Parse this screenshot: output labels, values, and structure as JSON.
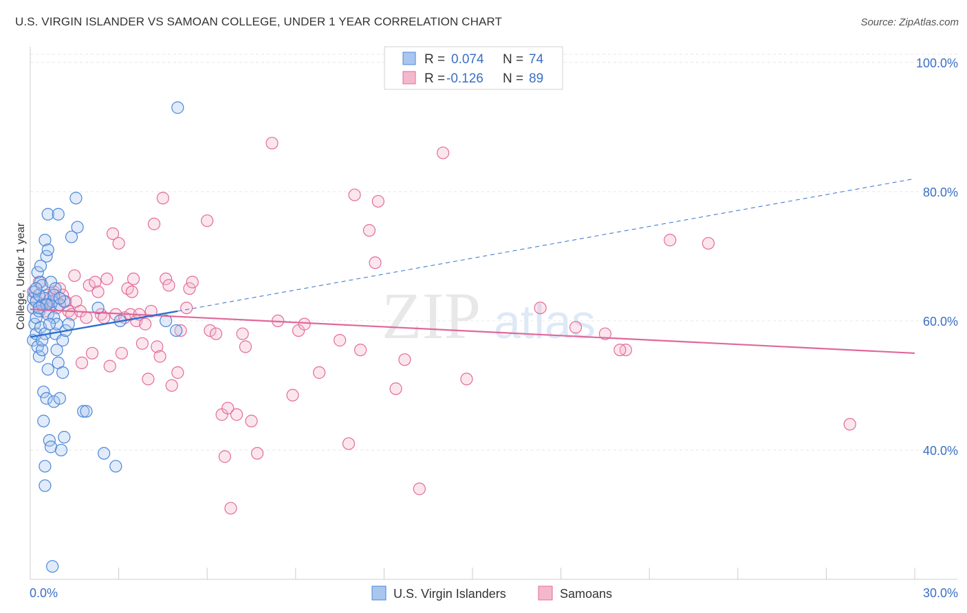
{
  "page": {
    "title": "U.S. VIRGIN ISLANDER VS SAMOAN COLLEGE, UNDER 1 YEAR CORRELATION CHART",
    "source": "Source: ZipAtlas.com"
  },
  "colors": {
    "blue": "#4a86d8",
    "blue_fill": "#a9c6ef",
    "pink": "#e46a98",
    "pink_fill": "#f4b8cd",
    "blue_line": "#2f6fd0",
    "pink_line": "#e0679a",
    "axis_text": "#3a6fc4"
  },
  "chart_data": {
    "type": "scatter",
    "title": "U.S. VIRGIN ISLANDER VS SAMOAN COLLEGE, UNDER 1 YEAR CORRELATION CHART",
    "ylabel": "College, Under 1 year",
    "xlabel": "",
    "xlim": [
      0,
      30
    ],
    "ylim": [
      20,
      102
    ],
    "x_tick_labels": [
      "0.0%",
      "30.0%"
    ],
    "y_ticks": [
      40,
      60,
      80,
      100
    ],
    "y_tick_labels": [
      "40.0%",
      "60.0%",
      "80.0%",
      "100.0%"
    ],
    "watermark": {
      "zip": "ZIP",
      "atlas": "atlas"
    },
    "legend": {
      "rows": [
        {
          "r_label": "R = ",
          "r_value": "0.074",
          "n_label": "N = ",
          "n_value": "74"
        },
        {
          "r_label": "R = ",
          "r_value": "-0.126",
          "n_label": "N = ",
          "n_value": "89"
        }
      ]
    },
    "series": [
      {
        "name": "U.S. Virgin Islanders",
        "trend": {
          "x": [
            0.0,
            5.0
          ],
          "y": [
            57.5,
            61.5
          ],
          "dashed_to": {
            "x": 30.0,
            "y": 82.0
          }
        },
        "points": [
          [
            0.1,
            63.5
          ],
          [
            0.1,
            62.0
          ],
          [
            0.1,
            57.0
          ],
          [
            0.15,
            59.5
          ],
          [
            0.15,
            64.5
          ],
          [
            0.2,
            60.5
          ],
          [
            0.2,
            58.0
          ],
          [
            0.2,
            63.0
          ],
          [
            0.25,
            67.5
          ],
          [
            0.25,
            56.0
          ],
          [
            0.3,
            61.5
          ],
          [
            0.3,
            54.5
          ],
          [
            0.35,
            68.5
          ],
          [
            0.35,
            66.0
          ],
          [
            0.35,
            59.0
          ],
          [
            0.4,
            62.5
          ],
          [
            0.4,
            55.5
          ],
          [
            0.4,
            65.5
          ],
          [
            0.45,
            49.0
          ],
          [
            0.45,
            44.5
          ],
          [
            0.5,
            72.5
          ],
          [
            0.5,
            63.5
          ],
          [
            0.5,
            58.0
          ],
          [
            0.5,
            37.5
          ],
          [
            0.5,
            34.5
          ],
          [
            0.55,
            70.0
          ],
          [
            0.55,
            48.0
          ],
          [
            0.6,
            76.5
          ],
          [
            0.6,
            71.0
          ],
          [
            0.6,
            61.0
          ],
          [
            0.6,
            52.5
          ],
          [
            0.65,
            41.5
          ],
          [
            0.7,
            66.0
          ],
          [
            0.7,
            62.5
          ],
          [
            0.7,
            40.5
          ],
          [
            0.75,
            63.0
          ],
          [
            0.75,
            22.0
          ],
          [
            0.8,
            60.5
          ],
          [
            0.8,
            47.5
          ],
          [
            0.85,
            65.0
          ],
          [
            0.85,
            58.0
          ],
          [
            0.9,
            59.5
          ],
          [
            0.9,
            55.5
          ],
          [
            0.95,
            76.5
          ],
          [
            0.95,
            53.5
          ],
          [
            1.0,
            62.5
          ],
          [
            1.0,
            48.0
          ],
          [
            1.05,
            40.0
          ],
          [
            1.1,
            57.0
          ],
          [
            1.1,
            52.0
          ],
          [
            1.15,
            63.0
          ],
          [
            1.15,
            42.0
          ],
          [
            1.2,
            58.5
          ],
          [
            1.3,
            59.5
          ],
          [
            1.4,
            73.0
          ],
          [
            1.55,
            79.0
          ],
          [
            1.6,
            74.5
          ],
          [
            1.8,
            46.0
          ],
          [
            1.9,
            46.0
          ],
          [
            2.3,
            62.0
          ],
          [
            2.5,
            39.5
          ],
          [
            2.9,
            37.5
          ],
          [
            3.05,
            60.0
          ],
          [
            4.6,
            60.0
          ],
          [
            4.95,
            58.5
          ],
          [
            5.0,
            93.0
          ],
          [
            0.3,
            64.0
          ],
          [
            0.4,
            57.0
          ],
          [
            0.55,
            62.5
          ],
          [
            0.65,
            59.5
          ],
          [
            0.8,
            64.0
          ],
          [
            1.0,
            63.5
          ],
          [
            0.2,
            65.0
          ],
          [
            0.3,
            62.0
          ]
        ]
      },
      {
        "name": "Samoans",
        "trend": {
          "x": [
            0.0,
            30.0
          ],
          "y": [
            61.8,
            55.0
          ]
        },
        "points": [
          [
            0.1,
            64.5
          ],
          [
            0.2,
            63.0
          ],
          [
            0.3,
            66.0
          ],
          [
            0.4,
            62.5
          ],
          [
            0.5,
            61.5
          ],
          [
            0.55,
            64.0
          ],
          [
            0.6,
            62.5
          ],
          [
            0.7,
            63.5
          ],
          [
            0.8,
            64.5
          ],
          [
            0.9,
            62.0
          ],
          [
            1.0,
            65.0
          ],
          [
            1.1,
            64.0
          ],
          [
            1.2,
            63.0
          ],
          [
            1.3,
            61.5
          ],
          [
            1.4,
            61.0
          ],
          [
            1.5,
            67.0
          ],
          [
            1.55,
            63.0
          ],
          [
            1.7,
            61.5
          ],
          [
            1.75,
            53.5
          ],
          [
            1.9,
            60.5
          ],
          [
            2.0,
            65.5
          ],
          [
            2.1,
            55.0
          ],
          [
            2.2,
            66.0
          ],
          [
            2.3,
            64.5
          ],
          [
            2.4,
            61.0
          ],
          [
            2.5,
            60.5
          ],
          [
            2.6,
            66.5
          ],
          [
            2.7,
            53.0
          ],
          [
            2.8,
            73.5
          ],
          [
            2.9,
            61.0
          ],
          [
            3.0,
            72.0
          ],
          [
            3.1,
            55.0
          ],
          [
            3.2,
            60.5
          ],
          [
            3.3,
            65.0
          ],
          [
            3.4,
            61.0
          ],
          [
            3.45,
            64.5
          ],
          [
            3.5,
            66.5
          ],
          [
            3.6,
            60.0
          ],
          [
            3.7,
            61.0
          ],
          [
            3.8,
            56.5
          ],
          [
            3.9,
            59.5
          ],
          [
            4.0,
            51.0
          ],
          [
            4.1,
            61.5
          ],
          [
            4.2,
            75.0
          ],
          [
            4.3,
            56.0
          ],
          [
            4.4,
            54.5
          ],
          [
            4.5,
            79.0
          ],
          [
            4.6,
            66.5
          ],
          [
            4.7,
            65.5
          ],
          [
            4.8,
            50.0
          ],
          [
            5.0,
            52.0
          ],
          [
            5.1,
            58.5
          ],
          [
            5.3,
            62.0
          ],
          [
            5.4,
            65.0
          ],
          [
            5.5,
            66.0
          ],
          [
            6.0,
            75.5
          ],
          [
            6.1,
            58.5
          ],
          [
            6.3,
            58.0
          ],
          [
            6.5,
            45.5
          ],
          [
            6.6,
            39.0
          ],
          [
            6.7,
            46.5
          ],
          [
            6.8,
            31.0
          ],
          [
            7.0,
            45.5
          ],
          [
            7.2,
            58.0
          ],
          [
            7.3,
            56.0
          ],
          [
            7.5,
            44.5
          ],
          [
            7.7,
            39.5
          ],
          [
            8.2,
            87.5
          ],
          [
            8.4,
            60.0
          ],
          [
            8.9,
            48.5
          ],
          [
            9.1,
            58.5
          ],
          [
            9.3,
            59.5
          ],
          [
            9.8,
            52.0
          ],
          [
            10.5,
            57.0
          ],
          [
            10.8,
            41.0
          ],
          [
            11.0,
            79.5
          ],
          [
            11.2,
            55.5
          ],
          [
            11.5,
            74.0
          ],
          [
            11.7,
            69.0
          ],
          [
            11.8,
            78.5
          ],
          [
            12.4,
            49.5
          ],
          [
            12.7,
            54.0
          ],
          [
            13.2,
            34.0
          ],
          [
            14.0,
            86.0
          ],
          [
            14.8,
            51.0
          ],
          [
            17.3,
            62.0
          ],
          [
            18.5,
            59.0
          ],
          [
            19.5,
            58.0
          ],
          [
            20.2,
            55.5
          ]
        ],
        "extra_points": [
          [
            20.0,
            55.5
          ],
          [
            21.7,
            72.5
          ],
          [
            23.0,
            72.0
          ],
          [
            27.8,
            44.0
          ]
        ]
      }
    ]
  },
  "bottom_legend": {
    "series1": "U.S. Virgin Islanders",
    "series2": "Samoans"
  }
}
